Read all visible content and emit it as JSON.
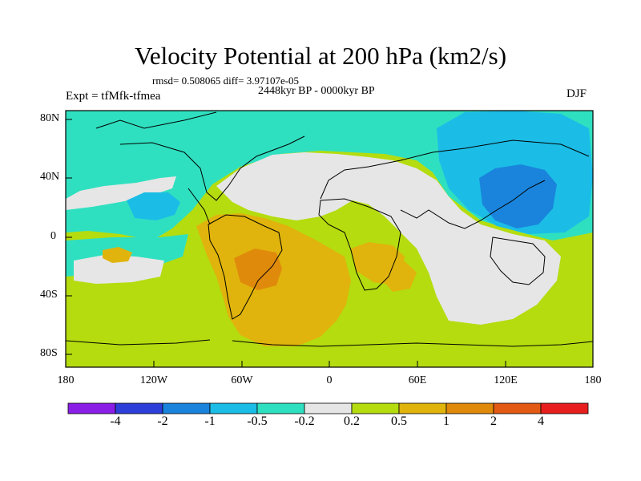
{
  "title": "Velocity Potential at 200 hPa (km2/s)",
  "stats": "rmsd= 0.508065 diff= 3.97107e-05",
  "experiment": "Expt = tfMfk-tfmea",
  "period": "2448kyr BP - 0000kyr BP",
  "season": "DJF",
  "y_ticks": [
    "80N",
    "40N",
    "0",
    "40S",
    "80S"
  ],
  "x_ticks": [
    "180",
    "120W",
    "60W",
    "0",
    "60E",
    "120E",
    "180"
  ],
  "colorbar": {
    "colors": [
      "#8a1ee6",
      "#2d3fd8",
      "#1a84dc",
      "#1bbde6",
      "#2fe0c0",
      "#e6e6e6",
      "#b4dc0f",
      "#e0b40c",
      "#e08a0c",
      "#e25a14",
      "#e81e1e"
    ],
    "labels": [
      "-4",
      "-2",
      "-1",
      "-0.5",
      "-0.2",
      "0.2",
      "0.5",
      "1",
      "2",
      "4"
    ]
  },
  "field_colors": {
    "background": "#b4dc0f",
    "teal": "#2fe0c0",
    "cyan": "#1bbde6",
    "blue": "#1a84dc",
    "white": "#e6e6e6",
    "orange": "#e0b40c",
    "dark_orange": "#e08a0c"
  }
}
